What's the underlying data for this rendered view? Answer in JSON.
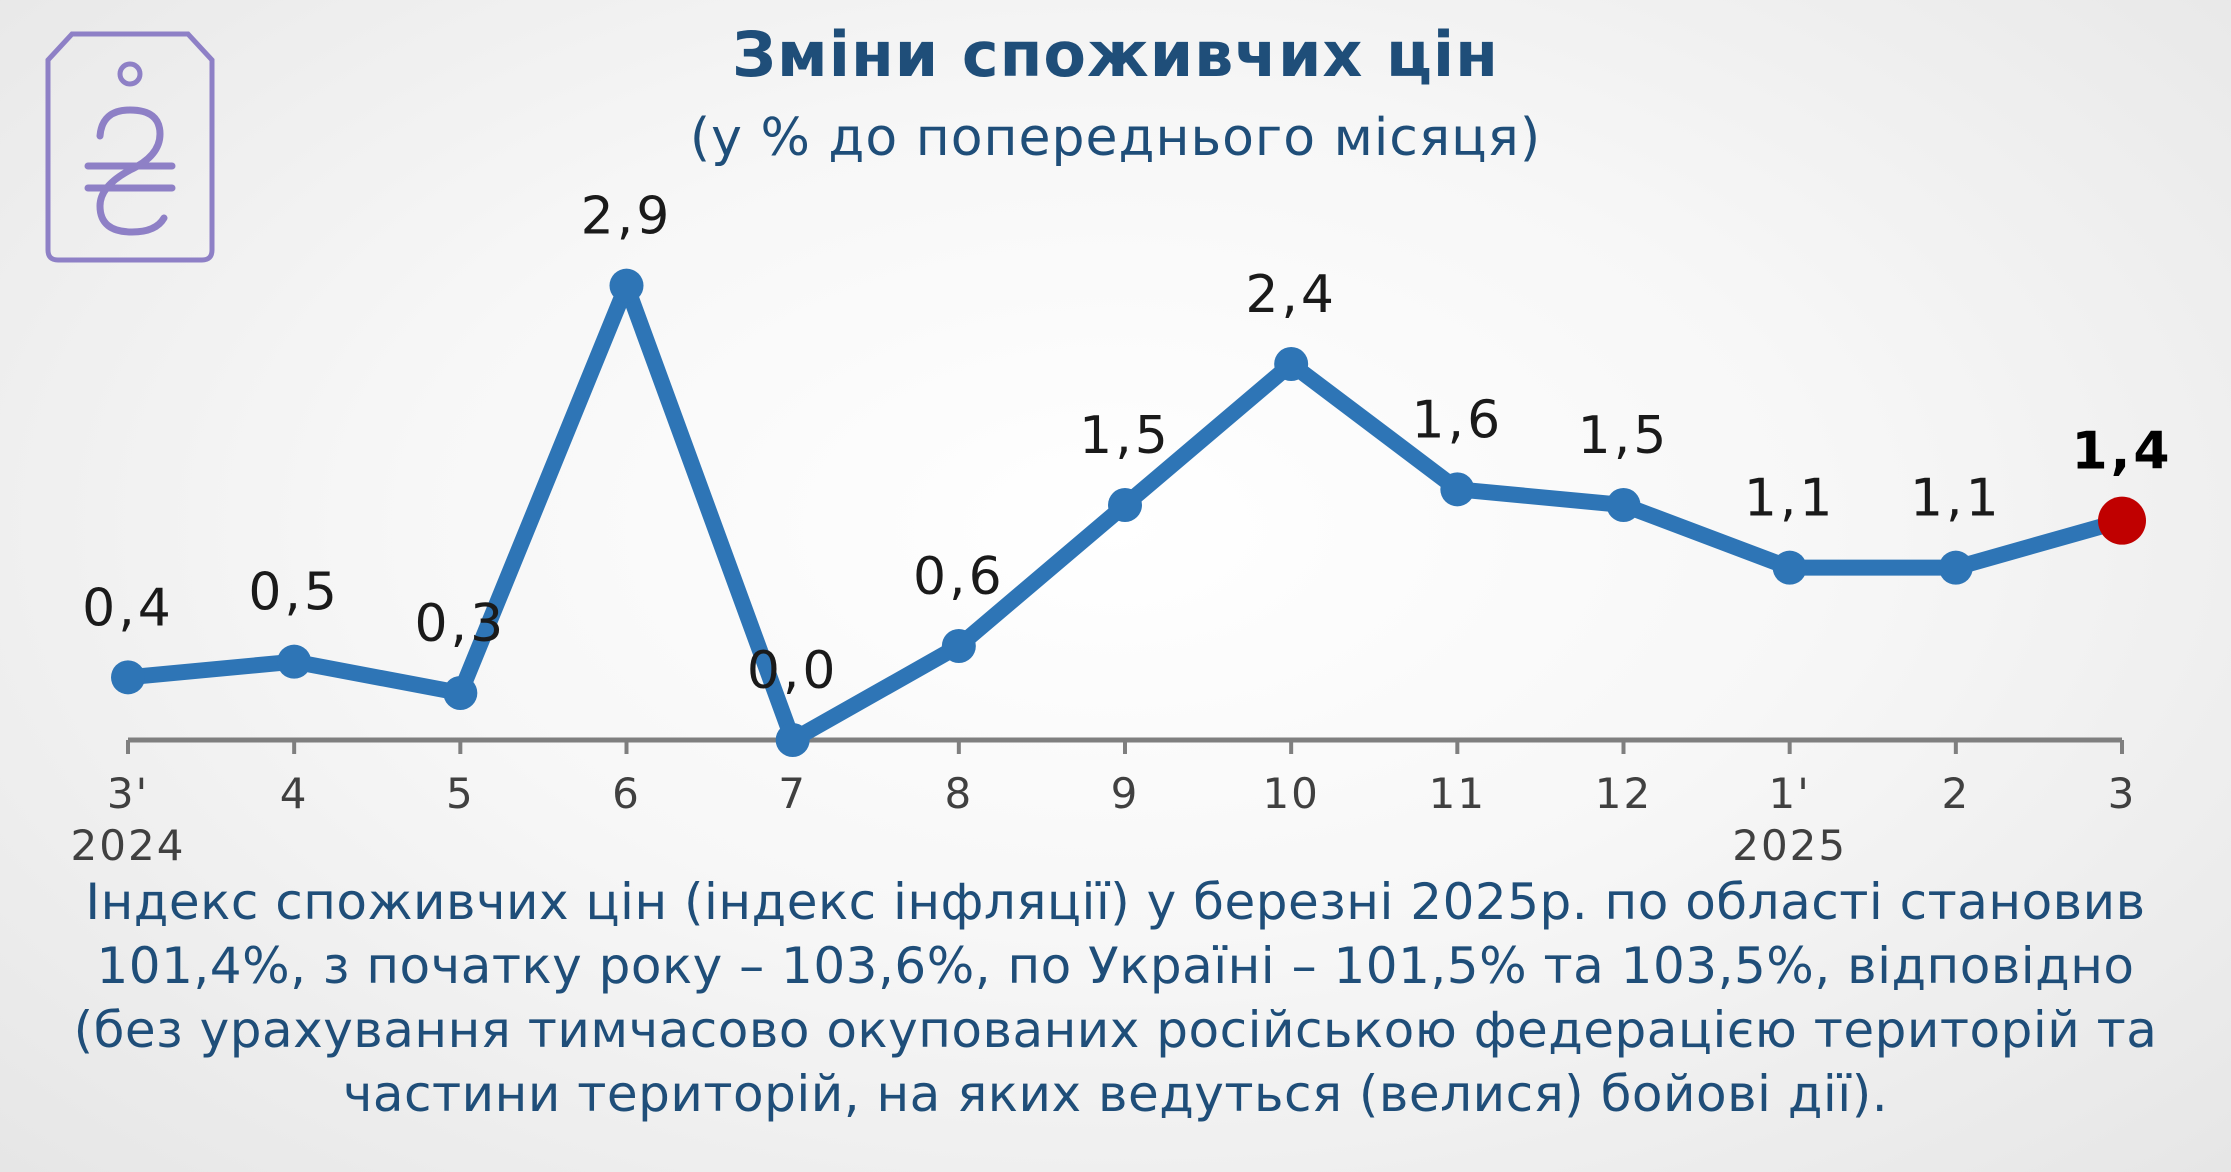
{
  "header": {
    "title": "Зміни споживчих цін",
    "subtitle": "(у % до попереднього місяця)"
  },
  "logo": {
    "icon": "hryvnia-price-tag-icon",
    "color": "#8e80c6"
  },
  "colors": {
    "line": "#2e75b6",
    "highlight": "#c00000",
    "axis": "#7f7f7f",
    "text": "#1f4e79"
  },
  "chart_data": {
    "type": "line",
    "title": "Зміни споживчих цін",
    "subtitle": "(у % до попереднього місяця)",
    "categories": [
      "3'",
      "4",
      "5",
      "6",
      "7",
      "8",
      "9",
      "10",
      "11",
      "12",
      "1'",
      "2",
      "3"
    ],
    "year_labels": [
      {
        "category": "3'",
        "label": "2024"
      },
      {
        "category": "1'",
        "label": "2025"
      }
    ],
    "series": [
      {
        "values": [
          0.4,
          0.5,
          0.3,
          2.9,
          0.0,
          0.6,
          1.5,
          2.4,
          1.6,
          1.5,
          1.1,
          1.1,
          1.4
        ],
        "labels": [
          "0,4",
          "0,5",
          "0,3",
          "2,9",
          "0,0",
          "0,6",
          "1,5",
          "2,4",
          "1,6",
          "1,5",
          "1,1",
          "1,1",
          "1,4"
        ]
      }
    ],
    "highlight_index": 12,
    "ylim": [
      0,
      3
    ],
    "grid": false,
    "legend": "none"
  },
  "caption": "Індекс споживчих цін (індекс інфляції) у березні 2025р. по області становив 101,4%, з початку року – 103,6%, по Україні – 101,5% та 103,5%, відповідно (без урахування тимчасово окупованих російською федерацією територій та частини територій, на яких ведуться (велися) бойові дії)."
}
